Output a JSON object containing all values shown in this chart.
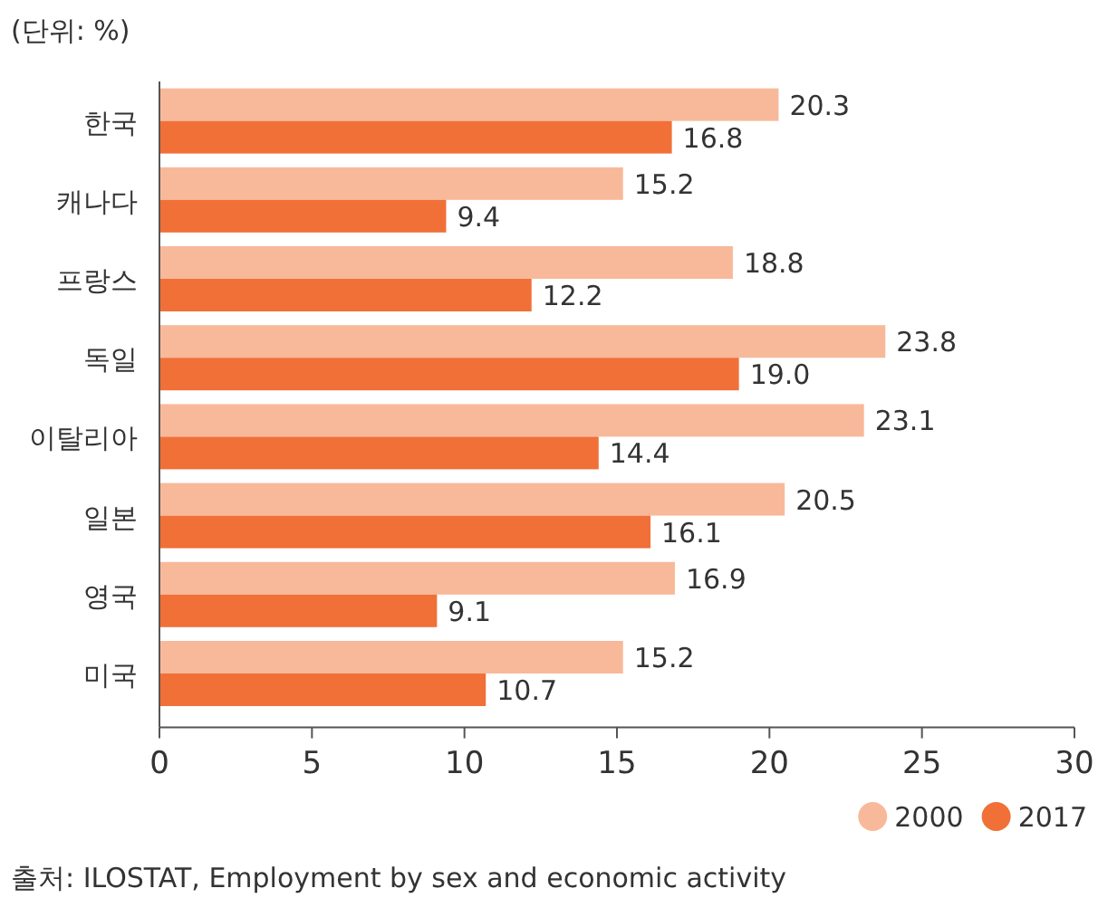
{
  "chart_data": {
    "type": "bar",
    "orientation": "horizontal",
    "categories": [
      "한국",
      "캐나다",
      "프랑스",
      "독일",
      "이탈리아",
      "일본",
      "영국",
      "미국"
    ],
    "series": [
      {
        "name": "2000",
        "color": "#f8b99a",
        "values": [
          20.3,
          15.2,
          18.8,
          23.8,
          23.1,
          20.5,
          16.9,
          15.2
        ],
        "value_labels": [
          "20.3",
          "15.2",
          "18.8",
          "23.8",
          "23.1",
          "20.5",
          "16.9",
          "15.2"
        ]
      },
      {
        "name": "2017",
        "color": "#f07038",
        "values": [
          16.8,
          9.4,
          12.2,
          19.0,
          14.4,
          16.1,
          9.1,
          10.7
        ],
        "value_labels": [
          "16.8",
          "9.4",
          "12.2",
          "19.0",
          "14.4",
          "16.1",
          "9.1",
          "10.7"
        ]
      }
    ],
    "xlim": [
      0,
      30
    ],
    "xticks": [
      0,
      5,
      10,
      15,
      20,
      25,
      30
    ],
    "legend": "bottom right",
    "annotations": [
      "(단위: %)",
      "출처: ILOSTAT, Employment by sex and economic activity"
    ]
  }
}
